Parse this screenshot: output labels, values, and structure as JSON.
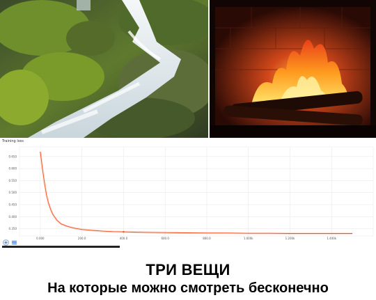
{
  "caption": {
    "line1": "ТРИ ВЕЩИ",
    "line2": "На которые можно смотреть бесконечно"
  },
  "photos": {
    "stream": "waterfall-photo",
    "fire": "fireplace-photo"
  },
  "chart_data": {
    "type": "line",
    "title": "Training loss",
    "xlabel": "",
    "ylabel": "",
    "x_ticks": [
      "0.000",
      "200.0",
      "400.0",
      "600.0",
      "800.0",
      "1.000k",
      "1.200k",
      "1.400k"
    ],
    "y_ticks": [
      "0.350",
      "0.400",
      "0.450",
      "0.500",
      "0.550",
      "0.600",
      "0.650"
    ],
    "xlim": [
      -100,
      1600
    ],
    "ylim": [
      0.32,
      0.69
    ],
    "grid": true,
    "series": [
      {
        "color": "#f4511e",
        "x": [
          0,
          10,
          20,
          30,
          40,
          50,
          60,
          80,
          100,
          130,
          160,
          200,
          250,
          300,
          350,
          400,
          450,
          500,
          600,
          700,
          800,
          900,
          1000,
          1100,
          1200,
          1300,
          1400,
          1500
        ],
        "y": [
          0.67,
          0.6,
          0.54,
          0.49,
          0.455,
          0.43,
          0.41,
          0.385,
          0.37,
          0.36,
          0.353,
          0.347,
          0.343,
          0.34,
          0.338,
          0.337,
          0.336,
          0.335,
          0.334,
          0.333,
          0.332,
          0.332,
          0.331,
          0.331,
          0.33,
          0.33,
          0.33,
          0.33
        ]
      }
    ]
  },
  "colors": {
    "loss_line": "#f4511e",
    "grid": "#e6e6e6"
  },
  "toolbar": {
    "icons": [
      "fit-domain-icon",
      "data-download-icon"
    ]
  }
}
